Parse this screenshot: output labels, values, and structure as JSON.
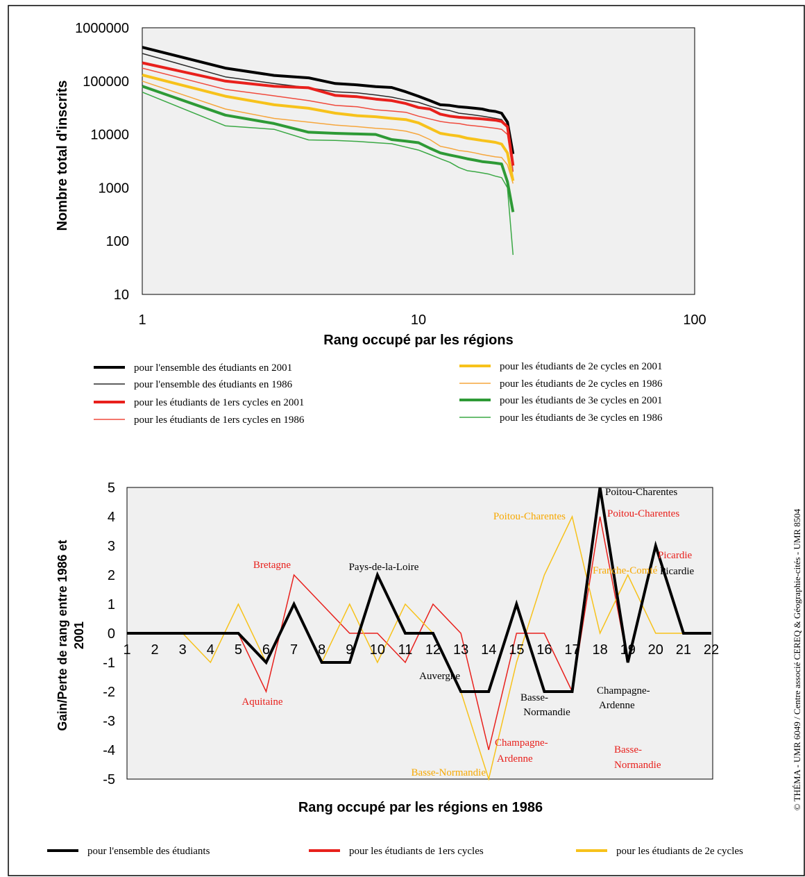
{
  "credit": "© THÉMA - UMR 6049 / Centre associé CEREQ & Géographie-cités - UMR 8504",
  "colors": {
    "black": "#000000",
    "dark": "#2a2a2a",
    "red": "#e8201c",
    "redLight": "#f04a3c",
    "yellow": "#f7c21b",
    "yellowLight": "#f6a63c",
    "green": "#2e9a36",
    "greenLight": "#3aa844",
    "plotBg": "#f0f0f0"
  },
  "chart_data": [
    {
      "type": "line",
      "scale": "log-log",
      "xlabel": "Rang occupé par les régions",
      "ylabel": "Nombre total  d'inscrits",
      "xlim": [
        1,
        100
      ],
      "ylim": [
        10,
        1000000
      ],
      "xticks": [
        "1",
        "10",
        "100"
      ],
      "yticks": [
        "10",
        "100",
        "1000",
        "10000",
        "100000",
        "1000000"
      ],
      "x": [
        1,
        2,
        3,
        4,
        5,
        6,
        7,
        8,
        9,
        10,
        11,
        12,
        13,
        14,
        15,
        16,
        17,
        18,
        19,
        20,
        21,
        22
      ],
      "series": [
        {
          "name": "pour l'ensemble des étudiants en 2001",
          "color": "#000000",
          "width": 4,
          "values": [
            430000,
            175000,
            128000,
            115000,
            90000,
            85000,
            79000,
            76000,
            63000,
            52000,
            43000,
            36000,
            35000,
            33000,
            32000,
            31000,
            30000,
            28000,
            27000,
            25000,
            17000,
            4300
          ]
        },
        {
          "name": "pour l'ensemble des étudiants en 1986",
          "color": "#2a2a2a",
          "width": 1.5,
          "values": [
            330000,
            120000,
            90000,
            75000,
            63000,
            60000,
            55000,
            50000,
            44000,
            40000,
            34000,
            30000,
            28000,
            25000,
            24000,
            23000,
            22000,
            21000,
            20000,
            19000,
            14000,
            2000
          ]
        },
        {
          "name": "pour les étudiants de 1ers cycles en 2001",
          "color": "#e8201c",
          "width": 4,
          "values": [
            220000,
            100000,
            80000,
            75000,
            54000,
            51000,
            46000,
            43000,
            38000,
            32000,
            30000,
            24000,
            22000,
            21000,
            20500,
            20000,
            19500,
            19000,
            18500,
            17500,
            14000,
            2600
          ]
        },
        {
          "name": "pour les étudiants de 1ers cycles en 1986",
          "color": "#f04a3c",
          "width": 1.5,
          "values": [
            175000,
            70000,
            53000,
            43000,
            35000,
            33000,
            29000,
            27500,
            26000,
            22000,
            19500,
            17500,
            16500,
            16000,
            15000,
            14500,
            14000,
            13500,
            13000,
            12500,
            10000,
            2000
          ]
        },
        {
          "name": "pour les étudiants de 2e cycles en 2001",
          "color": "#f7c21b",
          "width": 4,
          "values": [
            130000,
            52000,
            36000,
            31000,
            25000,
            22500,
            21500,
            20000,
            19000,
            16500,
            13000,
            10500,
            9800,
            9300,
            8500,
            8100,
            7700,
            7400,
            7100,
            6600,
            4500,
            1350
          ]
        },
        {
          "name": "pour les étudiants de 2e cycles en 1986",
          "color": "#f6a63c",
          "width": 1.5,
          "values": [
            100000,
            30000,
            20000,
            17000,
            15000,
            14000,
            13000,
            12500,
            11500,
            10000,
            8000,
            6000,
            5500,
            5000,
            4800,
            4500,
            4200,
            4000,
            3800,
            3700,
            2700,
            1200
          ]
        },
        {
          "name": "pour les étudiants de 3e cycles en 2001",
          "color": "#2e9a36",
          "width": 4,
          "values": [
            80000,
            23000,
            16000,
            11000,
            10500,
            10200,
            10000,
            8000,
            7500,
            7000,
            5500,
            4500,
            4100,
            3800,
            3500,
            3300,
            3100,
            3000,
            2900,
            2800,
            1300,
            350
          ]
        },
        {
          "name": "pour les étudiants de 3e cycles en 1986",
          "color": "#3aa844",
          "width": 1.5,
          "values": [
            62000,
            14500,
            12500,
            7900,
            7700,
            7400,
            7000,
            6700,
            5800,
            5100,
            4200,
            3500,
            3000,
            2400,
            2100,
            2000,
            1900,
            1800,
            1650,
            1550,
            1000,
            55
          ]
        }
      ]
    },
    {
      "type": "line",
      "xlabel": "Rang occupé par les régions en 1986",
      "ylabel": "Gain/Perte de rang entre 1986 et 2001",
      "ylim": [
        -5,
        5
      ],
      "categories": [
        "1",
        "2",
        "3",
        "4",
        "5",
        "6",
        "7",
        "8",
        "9",
        "10",
        "11",
        "12",
        "13",
        "14",
        "15",
        "16",
        "17",
        "18",
        "19",
        "20",
        "21",
        "22"
      ],
      "yticks": [
        "5",
        "4",
        "3",
        "2",
        "1",
        "0",
        "-1",
        "-2",
        "-3",
        "-4",
        "-5"
      ],
      "series": [
        {
          "name": "pour l'ensemble des étudiants",
          "color": "#000000",
          "width": 4,
          "values": [
            0,
            0,
            0,
            0,
            0,
            -1,
            1,
            -1,
            -1,
            2,
            0,
            0,
            -2,
            -2,
            1,
            -2,
            -2,
            5,
            -1,
            3,
            0,
            0
          ]
        },
        {
          "name": "pour les étudiants de 1ers cycles",
          "color": "#e8201c",
          "width": 1.5,
          "values": [
            0,
            0,
            0,
            0,
            0,
            -2,
            2,
            1,
            0,
            0,
            -1,
            1,
            0,
            -4,
            0,
            0,
            -2,
            4,
            -1,
            3,
            0,
            0
          ]
        },
        {
          "name": "pour les étudiants de 2e cycles",
          "color": "#f7c21b",
          "width": 1.5,
          "values": [
            0,
            0,
            0,
            -1,
            1,
            -1,
            1,
            -1,
            1,
            -1,
            1,
            0,
            -2,
            -5,
            -1,
            2,
            4,
            0,
            2,
            0,
            0,
            0
          ]
        }
      ],
      "annotations": [
        {
          "text": "Poitou-Charentes",
          "color": "#000000"
        },
        {
          "text": "Poitou-Charentes",
          "color": "#e8201c"
        },
        {
          "text": "Poitou-Charentes",
          "color": "#f7a800"
        },
        {
          "text": "Picardie",
          "color": "#e8201c"
        },
        {
          "text": "Picardie",
          "color": "#000000"
        },
        {
          "text": "Franche-Comté",
          "color": "#f7a800"
        },
        {
          "text": "Bretagne",
          "color": "#e8201c"
        },
        {
          "text": "Pays-de-la-Loire",
          "color": "#000000"
        },
        {
          "text": "Aquitaine",
          "color": "#e8201c"
        },
        {
          "text": "Auvergne",
          "color": "#000000"
        },
        {
          "text": "Basse-",
          "color": "#000000"
        },
        {
          "text": "Normandie",
          "color": "#000000"
        },
        {
          "text": "Champagne-",
          "color": "#000000"
        },
        {
          "text": "Ardenne",
          "color": "#000000"
        },
        {
          "text": "Champagne-",
          "color": "#e8201c"
        },
        {
          "text": "Ardenne",
          "color": "#e8201c"
        },
        {
          "text": "Basse-",
          "color": "#e8201c"
        },
        {
          "text": "Normandie",
          "color": "#e8201c"
        },
        {
          "text": "Basse-Normandie",
          "color": "#f7a800"
        }
      ]
    }
  ]
}
